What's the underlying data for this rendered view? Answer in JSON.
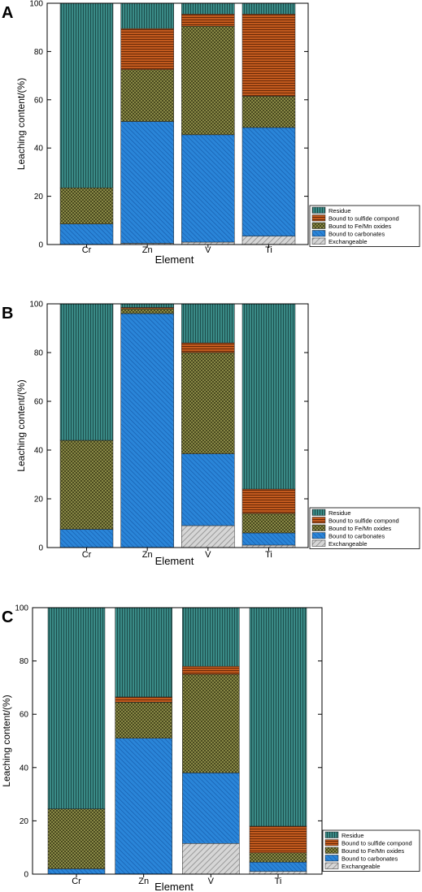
{
  "chart_data": [
    {
      "type": "bar",
      "stacked": true,
      "panel_label": "A",
      "title": "",
      "xlabel": "Element",
      "ylabel": "Leaching content/(%)",
      "ylim": [
        0,
        100
      ],
      "yticks": [
        0,
        20,
        40,
        60,
        80,
        100
      ],
      "categories": [
        "Cr",
        "Zn",
        "V",
        "Ti"
      ],
      "legend_position": "bottom-right",
      "series": [
        {
          "name": "Exchangeable",
          "values": [
            0,
            0.5,
            1,
            3.5
          ]
        },
        {
          "name": "Bound to carbonates",
          "values": [
            8.5,
            50.5,
            44.5,
            45
          ]
        },
        {
          "name": "Bound to Fe/Mn oxides",
          "values": [
            15,
            21.5,
            45,
            13
          ]
        },
        {
          "name": "Bound to sulfide compond",
          "values": [
            0,
            17,
            5,
            34
          ]
        },
        {
          "name": "Residue",
          "values": [
            76.5,
            10.5,
            4.5,
            4.5
          ]
        }
      ]
    },
    {
      "type": "bar",
      "stacked": true,
      "panel_label": "B",
      "title": "",
      "xlabel": "Element",
      "ylabel": "Leaching content/(%)",
      "ylim": [
        0,
        100
      ],
      "yticks": [
        0,
        20,
        40,
        60,
        80,
        100
      ],
      "categories": [
        "Cr",
        "Zn",
        "V",
        "Ti"
      ],
      "legend_position": "bottom-right",
      "series": [
        {
          "name": "Exchangeable",
          "values": [
            0,
            0,
            9,
            1
          ]
        },
        {
          "name": "Bound to carbonates",
          "values": [
            7.5,
            96,
            29.5,
            5
          ]
        },
        {
          "name": "Bound to Fe/Mn oxides",
          "values": [
            36.5,
            2,
            41.5,
            8
          ]
        },
        {
          "name": "Bound to sulfide compond",
          "values": [
            0,
            0.5,
            4,
            10
          ]
        },
        {
          "name": "Residue",
          "values": [
            56,
            1.5,
            16,
            76
          ]
        }
      ]
    },
    {
      "type": "bar",
      "stacked": true,
      "panel_label": "C",
      "title": "",
      "xlabel": "Element",
      "ylabel": "Leaching content/(%)",
      "ylim": [
        0,
        100
      ],
      "yticks": [
        0,
        20,
        40,
        60,
        80,
        100
      ],
      "categories": [
        "Cr",
        "Zn",
        "V",
        "Ti"
      ],
      "legend_position": "bottom-right",
      "series": [
        {
          "name": "Exchangeable",
          "values": [
            0,
            0,
            11.5,
            1
          ]
        },
        {
          "name": "Bound to carbonates",
          "values": [
            2,
            51,
            26.5,
            3.5
          ]
        },
        {
          "name": "Bound to Fe/Mn oxides",
          "values": [
            22.5,
            13.5,
            37,
            3.5
          ]
        },
        {
          "name": "Bound to sulfide compond",
          "values": [
            0,
            2,
            3,
            10
          ]
        },
        {
          "name": "Residue",
          "values": [
            75.5,
            33.5,
            22,
            82
          ]
        }
      ]
    }
  ],
  "legend": {
    "order": [
      4,
      3,
      2,
      1,
      0
    ]
  },
  "series_colors": {
    "Exchangeable": "#c8c8c8",
    "Bound to carbonates": "#2a85d8",
    "Bound to Fe/Mn oxides": "#8a8a3c",
    "Bound to sulfide compond": "#b8501a",
    "Residue": "#2f7a78"
  }
}
